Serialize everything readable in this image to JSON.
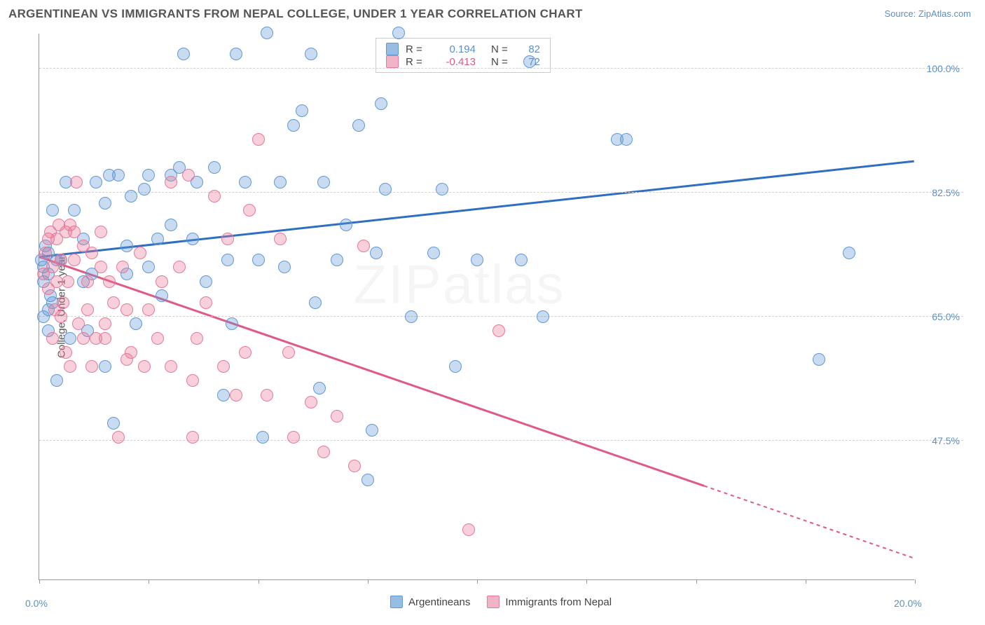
{
  "header": {
    "title": "ARGENTINEAN VS IMMIGRANTS FROM NEPAL COLLEGE, UNDER 1 YEAR CORRELATION CHART",
    "source": "Source: ZipAtlas.com"
  },
  "watermark": "ZIPatlas",
  "chart": {
    "type": "scatter",
    "xlim": [
      0,
      20
    ],
    "ylim": [
      28,
      105
    ],
    "xtick_positions": [
      0,
      2.5,
      5,
      7.5,
      10,
      12.5,
      15,
      17.5,
      20
    ],
    "x_axis_labels": [
      {
        "value": "0.0%",
        "x": 0
      },
      {
        "value": "20.0%",
        "x": 20
      }
    ],
    "y_gridlines": [
      47.5,
      65.0,
      82.5,
      100.0
    ],
    "y_gridline_labels": [
      "47.5%",
      "65.0%",
      "82.5%",
      "100.0%"
    ],
    "y_axis_title": "College, Under 1 year",
    "background_color": "#ffffff",
    "grid_color": "#d0d0d0",
    "axis_color": "#999999",
    "label_color": "#5a8fc7",
    "point_radius": 9,
    "point_opacity": 0.45,
    "series": [
      {
        "name": "Argentineans",
        "color_fill": "rgba(96,152,214,0.35)",
        "color_stroke": "#6098d6",
        "swatch_color": "#98bde4",
        "r_value": "0.194",
        "r_color": "#5a8fc7",
        "n_value": "82",
        "n_color": "#5a8fc7",
        "trend": {
          "x1": 0,
          "y1": 73.5,
          "x2": 20,
          "y2": 87,
          "color": "#2f6fc1",
          "width": 3,
          "solid_until_x": 20
        },
        "points": [
          [
            0.1,
            70
          ],
          [
            0.1,
            72
          ],
          [
            0.2,
            66
          ],
          [
            0.15,
            75
          ],
          [
            0.2,
            71
          ],
          [
            0.3,
            67
          ],
          [
            0.2,
            74
          ],
          [
            0.25,
            68
          ],
          [
            0.3,
            80
          ],
          [
            0.4,
            56
          ],
          [
            0.1,
            65
          ],
          [
            0.05,
            73
          ],
          [
            0.2,
            63
          ],
          [
            0.4,
            73
          ],
          [
            0.6,
            84
          ],
          [
            0.5,
            73
          ],
          [
            0.8,
            80
          ],
          [
            0.7,
            62
          ],
          [
            1.0,
            76
          ],
          [
            1.1,
            63
          ],
          [
            1.2,
            71
          ],
          [
            1.0,
            70
          ],
          [
            1.3,
            84
          ],
          [
            1.5,
            81
          ],
          [
            1.5,
            58
          ],
          [
            1.6,
            85
          ],
          [
            1.7,
            50
          ],
          [
            1.8,
            85
          ],
          [
            2.0,
            71
          ],
          [
            2.0,
            75
          ],
          [
            2.1,
            82
          ],
          [
            2.2,
            64
          ],
          [
            2.4,
            83
          ],
          [
            2.5,
            72
          ],
          [
            2.5,
            85
          ],
          [
            2.7,
            76
          ],
          [
            2.8,
            68
          ],
          [
            3.0,
            85
          ],
          [
            3.0,
            78
          ],
          [
            3.2,
            86
          ],
          [
            3.3,
            102
          ],
          [
            3.5,
            76
          ],
          [
            3.6,
            84
          ],
          [
            3.8,
            70
          ],
          [
            4.0,
            86
          ],
          [
            4.2,
            54
          ],
          [
            4.3,
            73
          ],
          [
            4.4,
            64
          ],
          [
            4.5,
            102
          ],
          [
            4.7,
            84
          ],
          [
            5.0,
            73
          ],
          [
            5.1,
            48
          ],
          [
            5.2,
            105
          ],
          [
            5.5,
            84
          ],
          [
            5.6,
            72
          ],
          [
            5.8,
            92
          ],
          [
            6.0,
            94
          ],
          [
            6.2,
            102
          ],
          [
            6.3,
            67
          ],
          [
            6.4,
            55
          ],
          [
            6.5,
            84
          ],
          [
            6.8,
            73
          ],
          [
            7.0,
            78
          ],
          [
            7.3,
            92
          ],
          [
            7.5,
            42
          ],
          [
            7.6,
            49
          ],
          [
            7.7,
            74
          ],
          [
            7.8,
            95
          ],
          [
            7.9,
            83
          ],
          [
            8.2,
            105
          ],
          [
            8.5,
            65
          ],
          [
            9.0,
            74
          ],
          [
            9.2,
            83
          ],
          [
            9.5,
            58
          ],
          [
            10.0,
            73
          ],
          [
            11.0,
            73
          ],
          [
            11.2,
            101
          ],
          [
            11.5,
            65
          ],
          [
            13.2,
            90
          ],
          [
            13.4,
            90
          ],
          [
            17.8,
            59
          ],
          [
            18.5,
            74
          ]
        ]
      },
      {
        "name": "Immigrants from Nepal",
        "color_fill": "rgba(231,120,152,0.35)",
        "color_stroke": "#e77898",
        "swatch_color": "#f1b3c6",
        "r_value": "-0.413",
        "r_color": "#d65a85",
        "n_value": "72",
        "n_color": "#5a8fc7",
        "trend": {
          "x1": 0,
          "y1": 73.5,
          "x2": 20,
          "y2": 31,
          "color": "#e05a85",
          "width": 3,
          "solid_until_x": 15.2
        },
        "points": [
          [
            0.1,
            71
          ],
          [
            0.15,
            74
          ],
          [
            0.2,
            69
          ],
          [
            0.2,
            76
          ],
          [
            0.25,
            77
          ],
          [
            0.3,
            62
          ],
          [
            0.3,
            72
          ],
          [
            0.35,
            66
          ],
          [
            0.4,
            70
          ],
          [
            0.4,
            76
          ],
          [
            0.45,
            78
          ],
          [
            0.5,
            65
          ],
          [
            0.5,
            73
          ],
          [
            0.55,
            67
          ],
          [
            0.6,
            60
          ],
          [
            0.6,
            77
          ],
          [
            0.65,
            70
          ],
          [
            0.7,
            78
          ],
          [
            0.7,
            58
          ],
          [
            0.8,
            73
          ],
          [
            0.8,
            77
          ],
          [
            0.85,
            84
          ],
          [
            0.9,
            64
          ],
          [
            1.0,
            62
          ],
          [
            1.0,
            75
          ],
          [
            1.1,
            70
          ],
          [
            1.1,
            66
          ],
          [
            1.2,
            74
          ],
          [
            1.2,
            58
          ],
          [
            1.3,
            62
          ],
          [
            1.4,
            72
          ],
          [
            1.4,
            77
          ],
          [
            1.5,
            64
          ],
          [
            1.5,
            62
          ],
          [
            1.6,
            70
          ],
          [
            1.7,
            67
          ],
          [
            1.8,
            48
          ],
          [
            1.9,
            72
          ],
          [
            2.0,
            66
          ],
          [
            2.0,
            59
          ],
          [
            2.1,
            60
          ],
          [
            2.3,
            74
          ],
          [
            2.4,
            58
          ],
          [
            2.5,
            66
          ],
          [
            2.7,
            62
          ],
          [
            2.8,
            70
          ],
          [
            3.0,
            84
          ],
          [
            3.0,
            58
          ],
          [
            3.2,
            72
          ],
          [
            3.4,
            85
          ],
          [
            3.5,
            56
          ],
          [
            3.5,
            48
          ],
          [
            3.6,
            62
          ],
          [
            3.8,
            67
          ],
          [
            4.0,
            82
          ],
          [
            4.2,
            58
          ],
          [
            4.3,
            76
          ],
          [
            4.5,
            54
          ],
          [
            4.7,
            60
          ],
          [
            4.8,
            80
          ],
          [
            5.0,
            90
          ],
          [
            5.2,
            54
          ],
          [
            5.5,
            76
          ],
          [
            5.7,
            60
          ],
          [
            5.8,
            48
          ],
          [
            6.2,
            53
          ],
          [
            6.5,
            46
          ],
          [
            6.8,
            51
          ],
          [
            7.2,
            44
          ],
          [
            7.4,
            75
          ],
          [
            9.8,
            35
          ],
          [
            10.5,
            63
          ]
        ]
      }
    ],
    "bottom_legend": {
      "items": [
        "Argentineans",
        "Immigrants from Nepal"
      ]
    }
  }
}
